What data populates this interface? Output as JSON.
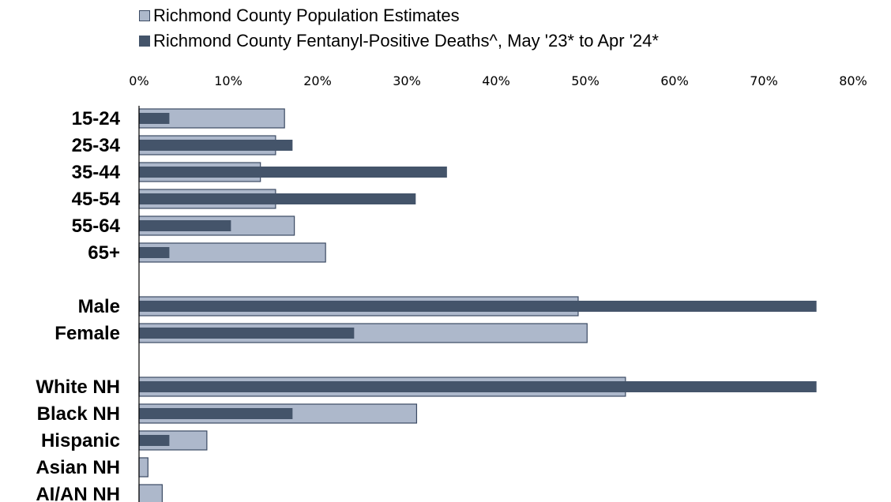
{
  "colors": {
    "population_fill": "#adb8cb",
    "population_stroke": "#3b4a63",
    "deaths_fill": "#44546a",
    "axis": "#000000"
  },
  "legend": {
    "items": [
      {
        "label": "Richmond County Population Estimates",
        "series": "population"
      },
      {
        "label": "Richmond County Fentanyl-Positive Deaths^, May '23* to Apr '24*",
        "series": "deaths"
      }
    ]
  },
  "chart_data": {
    "type": "bar",
    "orientation": "horizontal",
    "title": "",
    "xlabel": "",
    "ylabel": "",
    "xlim": [
      0,
      80
    ],
    "x_ticks": [
      "0%",
      "10%",
      "20%",
      "30%",
      "40%",
      "50%",
      "60%",
      "70%",
      "80%"
    ],
    "x_axis_position": "top",
    "grid": false,
    "legend_position": "top-left",
    "categories": [
      "15-24",
      "25-34",
      "35-44",
      "45-54",
      "55-64",
      "65+",
      "Male",
      "Female",
      "White NH",
      "Black NH",
      "Hispanic",
      "Asian NH",
      "AI/AN NH"
    ],
    "groups": [
      [
        "15-24",
        "25-34",
        "35-44",
        "45-54",
        "55-64",
        "65+"
      ],
      [
        "Male",
        "Female"
      ],
      [
        "White NH",
        "Black NH",
        "Hispanic",
        "Asian NH",
        "AI/AN NH"
      ]
    ],
    "series": [
      {
        "name": "Richmond County Population Estimates",
        "values": [
          16.3,
          15.3,
          13.6,
          15.3,
          17.4,
          20.9,
          49.2,
          50.2,
          54.5,
          31.1,
          7.6,
          1.0,
          2.6
        ]
      },
      {
        "name": "Richmond County Fentanyl-Positive Deaths^, May '23* to Apr '24*",
        "values": [
          3.4,
          17.2,
          34.5,
          31.0,
          10.3,
          3.4,
          75.9,
          24.1,
          75.9,
          17.2,
          3.4,
          0,
          0
        ]
      }
    ]
  }
}
